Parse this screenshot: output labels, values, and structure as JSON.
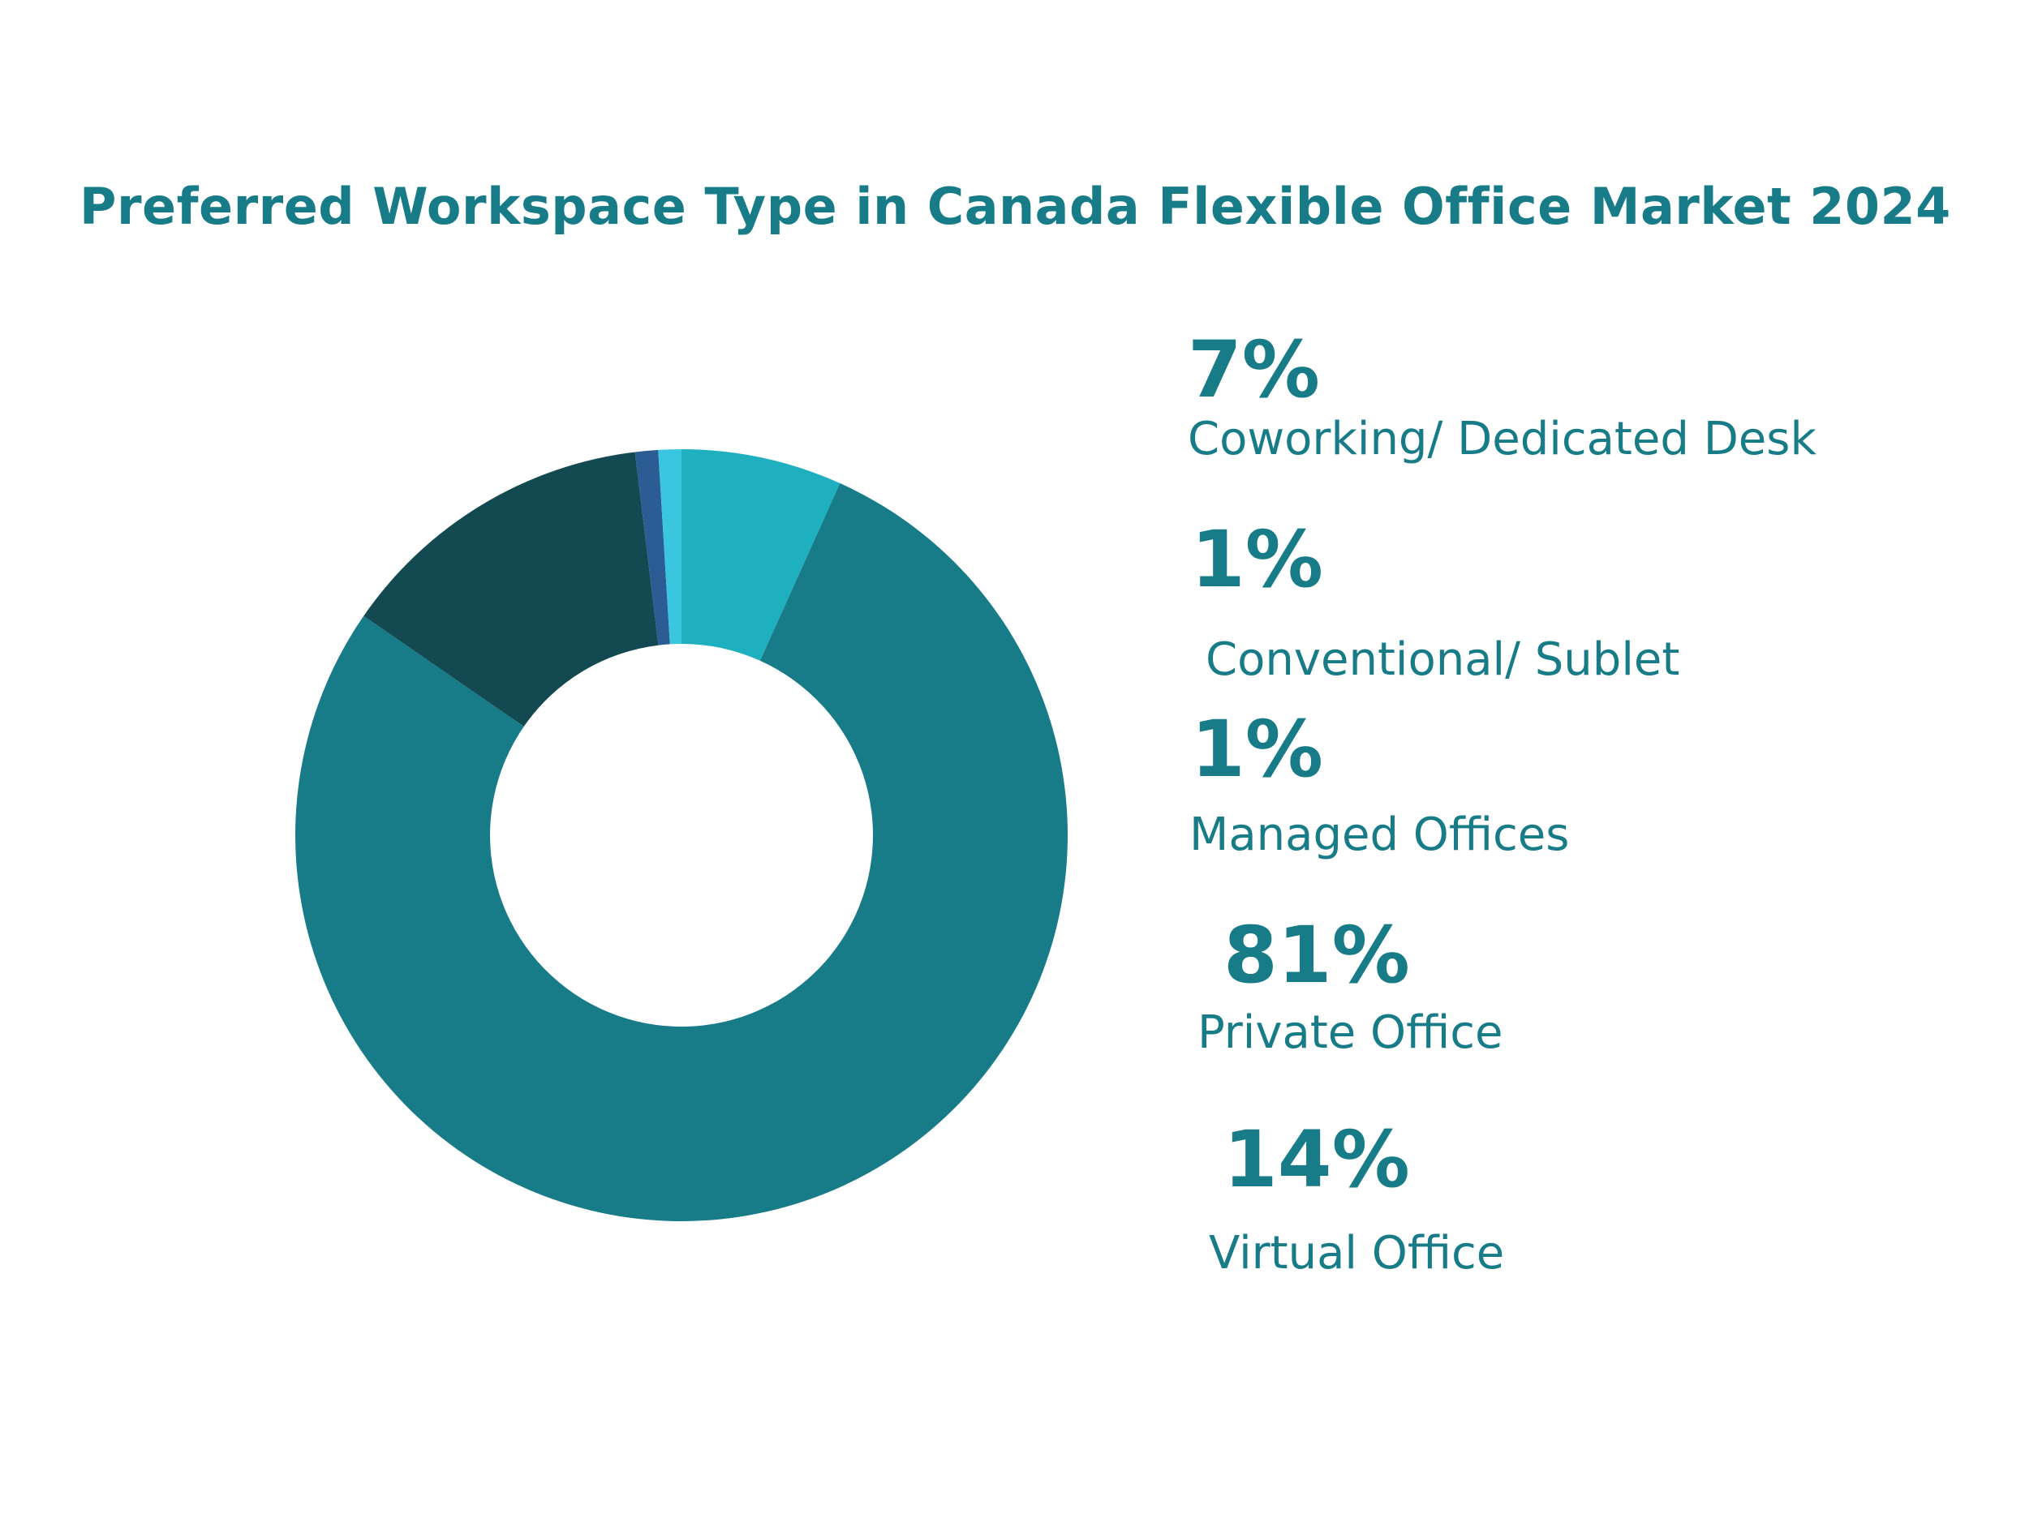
{
  "colors": {
    "title": "#177c88",
    "text": "#177c88",
    "background": "#ffffff"
  },
  "chart_data": {
    "type": "pie",
    "title": "Preferred Workspace Type in Canada Flexible Office Market 2024",
    "donut": true,
    "labels": [
      "Coworking/ Dedicated Desk",
      "Conventional/ Sublet",
      "Managed Offices",
      "Private Office",
      "Virtual Office"
    ],
    "values": [
      7,
      1,
      1,
      81,
      14
    ],
    "value_labels": [
      "7%",
      "1%",
      "1%",
      "81%",
      "14%"
    ],
    "colors": [
      "#1fb0c0",
      "#3bc6e0",
      "#2b5c94",
      "#177c88",
      "#134a52"
    ],
    "legend_placement": "right"
  }
}
